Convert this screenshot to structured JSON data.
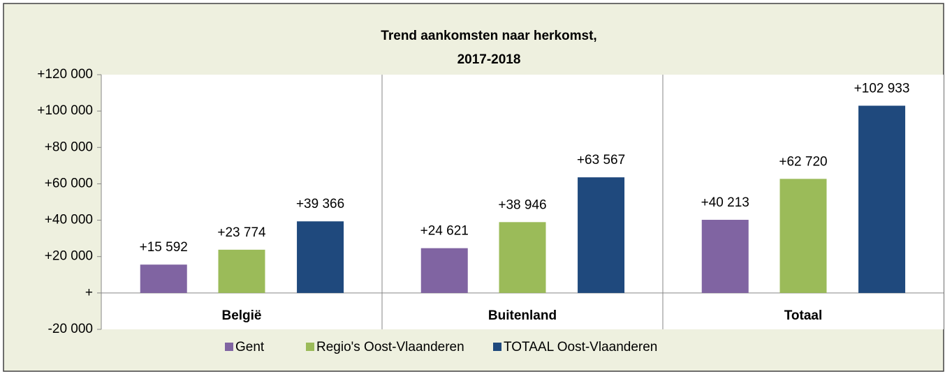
{
  "chart_data": {
    "type": "bar",
    "title": "Trend aankomsten naar herkomst,",
    "subtitle": "2017-2018",
    "categories": [
      "België",
      "Buitenland",
      "Totaal"
    ],
    "series": [
      {
        "name": "Gent",
        "color": "#8064a2",
        "values": [
          15592,
          24621,
          40213
        ],
        "value_labels": [
          "+15 592",
          "+24 621",
          "+40 213"
        ]
      },
      {
        "name": "Regio's Oost-Vlaanderen",
        "color": "#9bbb59",
        "values": [
          23774,
          38946,
          62720
        ],
        "value_labels": [
          "+23 774",
          "+38 946",
          "+62 720"
        ]
      },
      {
        "name": "TOTAAL Oost-Vlaanderen",
        "color": "#1f497d",
        "values": [
          39366,
          63567,
          102933
        ],
        "value_labels": [
          "+39 366",
          "+63 567",
          "+102 933"
        ]
      }
    ],
    "ylim": [
      -20000,
      120000
    ],
    "yticks": [
      {
        "value": -20000,
        "label": "-20 000"
      },
      {
        "value": 0,
        "label": "+"
      },
      {
        "value": 20000,
        "label": "+20 000"
      },
      {
        "value": 40000,
        "label": "+40 000"
      },
      {
        "value": 60000,
        "label": "+60 000"
      },
      {
        "value": 80000,
        "label": "+80 000"
      },
      {
        "value": 100000,
        "label": "+100 000"
      },
      {
        "value": 120000,
        "label": "+120 000"
      }
    ],
    "grid": false,
    "legend": "bottom"
  }
}
